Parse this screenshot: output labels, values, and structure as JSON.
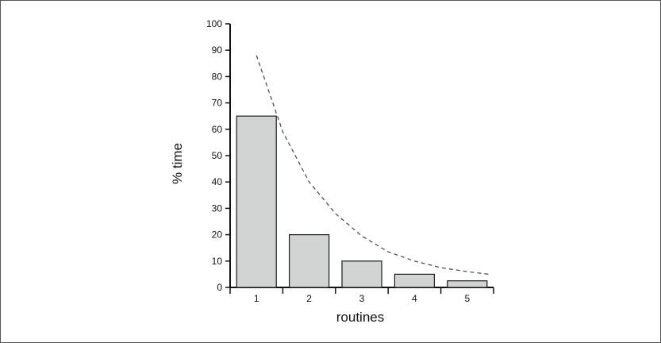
{
  "chart_data": {
    "type": "bar",
    "title": "",
    "xlabel": "routines",
    "ylabel": "% time",
    "categories": [
      "1",
      "2",
      "3",
      "4",
      "5"
    ],
    "values": [
      65,
      20,
      10,
      5,
      2.5
    ],
    "ylim": [
      0,
      100
    ],
    "yticks": [
      0,
      10,
      20,
      30,
      40,
      50,
      60,
      70,
      80,
      90,
      100
    ],
    "grid": false,
    "legend": "none",
    "trend_curve": {
      "style": "dashed",
      "x": [
        1.0,
        1.5,
        2.0,
        2.5,
        3.0,
        3.5,
        4.0,
        4.5,
        5.0,
        5.4
      ],
      "y": [
        88,
        59,
        40,
        28,
        19.5,
        13.5,
        10,
        7.5,
        6,
        5
      ]
    },
    "colors": {
      "bar_fill": "#d2d4d4",
      "bar_stroke": "#1a1a1a",
      "axis": "#111111",
      "curve": "#444444"
    }
  }
}
